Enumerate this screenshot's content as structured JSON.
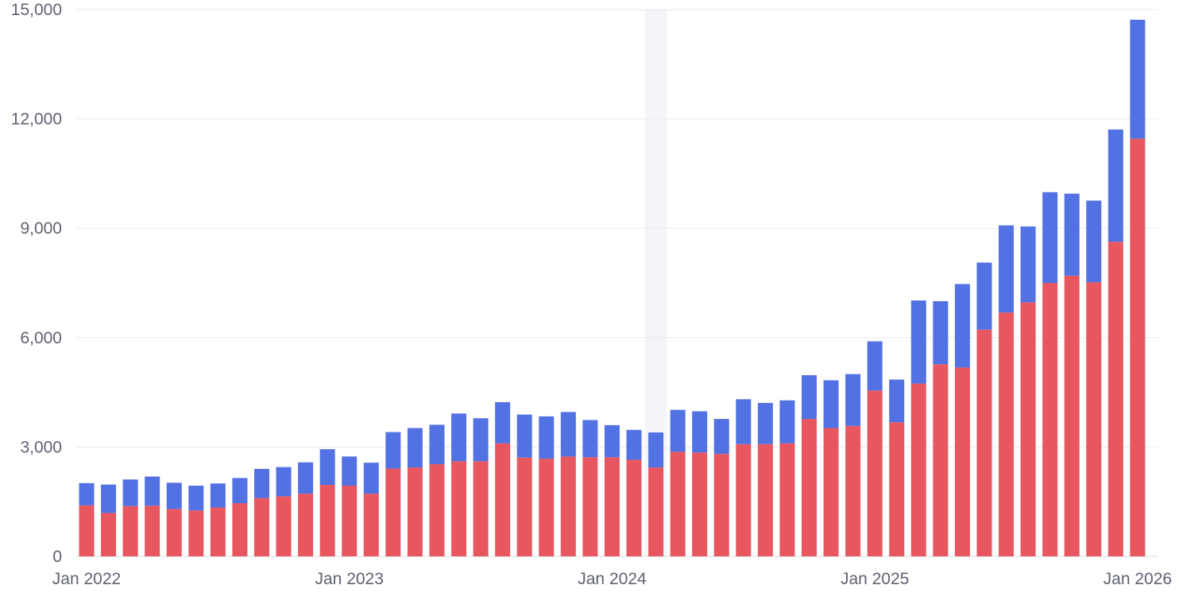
{
  "chart_data": {
    "type": "bar",
    "stacked": true,
    "title": "",
    "xlabel": "",
    "ylabel": "",
    "ylim": [
      0,
      15000
    ],
    "y_ticks": [
      "0",
      "3,000",
      "6,000",
      "9,000",
      "12,000",
      "15,000"
    ],
    "x_tick_labels": [
      {
        "index": 0,
        "label": "Jan 2022"
      },
      {
        "index": 12,
        "label": "Jan 2023"
      },
      {
        "index": 24,
        "label": "Jan 2024"
      },
      {
        "index": 36,
        "label": "Jan 2025"
      },
      {
        "index": 48,
        "label": "Jan 2026"
      }
    ],
    "grid": true,
    "highlighted_category_index": 26,
    "categories": [
      "2022-01",
      "2022-02",
      "2022-03",
      "2022-04",
      "2022-05",
      "2022-06",
      "2022-07",
      "2022-08",
      "2022-09",
      "2022-10",
      "2022-11",
      "2022-12",
      "2023-01",
      "2023-02",
      "2023-03",
      "2023-04",
      "2023-05",
      "2023-06",
      "2023-07",
      "2023-08",
      "2023-09",
      "2023-10",
      "2023-11",
      "2023-12",
      "2024-01",
      "2024-02",
      "2024-03",
      "2024-04",
      "2024-05",
      "2024-06",
      "2024-07",
      "2024-08",
      "2024-09",
      "2024-10",
      "2024-11",
      "2024-12",
      "2025-01",
      "2025-02",
      "2025-03",
      "2025-04",
      "2025-05",
      "2025-06",
      "2025-07",
      "2025-08",
      "2025-09",
      "2025-10",
      "2025-11",
      "2025-12",
      "2026-01"
    ],
    "series": [
      {
        "color": "#e8575f",
        "values": [
          1400,
          1190,
          1380,
          1390,
          1300,
          1260,
          1340,
          1460,
          1600,
          1650,
          1720,
          1960,
          1940,
          1720,
          2410,
          2440,
          2530,
          2610,
          2610,
          3100,
          2710,
          2680,
          2740,
          2720,
          2720,
          2650,
          2440,
          2870,
          2850,
          2810,
          3080,
          3080,
          3100,
          3770,
          3520,
          3580,
          4550,
          3680,
          4740,
          5270,
          5180,
          6220,
          6690,
          6970,
          7500,
          7700,
          7520,
          8630,
          11460
        ]
      },
      {
        "color": "#5271e3",
        "values": [
          610,
          780,
          730,
          800,
          720,
          680,
          660,
          690,
          800,
          800,
          860,
          980,
          800,
          850,
          1000,
          1080,
          1080,
          1310,
          1180,
          1130,
          1180,
          1160,
          1220,
          1020,
          880,
          820,
          960,
          1150,
          1130,
          960,
          1230,
          1130,
          1180,
          1200,
          1310,
          1420,
          1350,
          1170,
          2280,
          1730,
          2290,
          1840,
          2390,
          2080,
          2490,
          2250,
          2240,
          3080,
          3260
        ]
      }
    ]
  }
}
